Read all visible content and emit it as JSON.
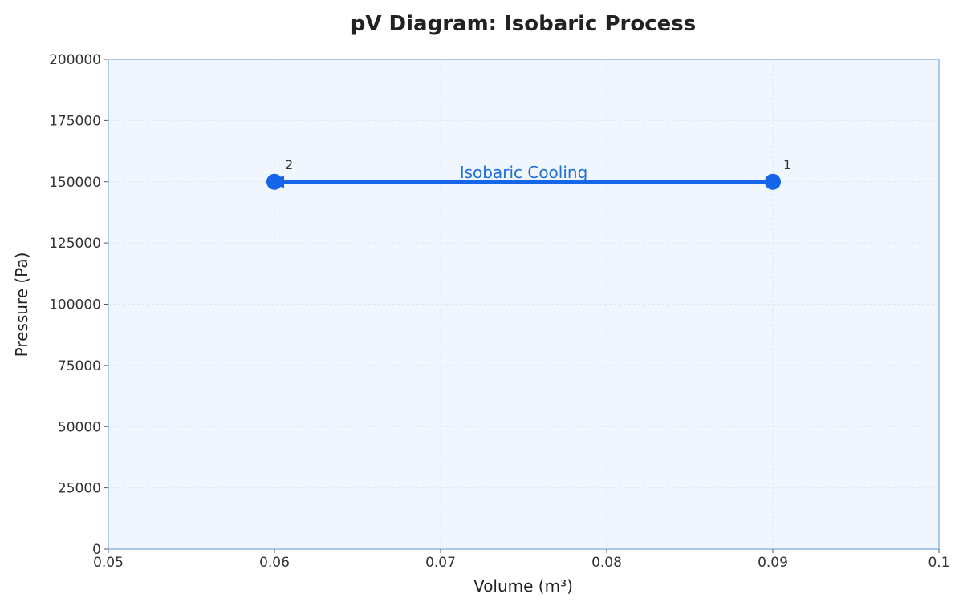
{
  "chart_data": {
    "type": "line",
    "title": "pV Diagram: Isobaric Process",
    "xlabel": "Volume (m³)",
    "ylabel": "Pressure (Pa)",
    "xlim": [
      0.05,
      0.1
    ],
    "ylim": [
      0,
      200000
    ],
    "xticks": [
      "0.05",
      "0.06",
      "0.07",
      "0.08",
      "0.09",
      "0.1"
    ],
    "yticks": [
      "0",
      "25000",
      "50000",
      "75000",
      "100000",
      "125000",
      "150000",
      "175000",
      "200000"
    ],
    "grid": true,
    "points": [
      {
        "label": "1",
        "x": 0.09,
        "y": 150000
      },
      {
        "label": "2",
        "x": 0.06,
        "y": 150000
      }
    ],
    "process": {
      "from": "1",
      "to": "2",
      "label": "Isobaric Cooling"
    },
    "colors": {
      "line": "#1565e8",
      "annotation": "#1f6fd6",
      "plot_background": "#f0f6fe",
      "frame": "#a9c8ef",
      "grid": "#dde6f2"
    }
  }
}
